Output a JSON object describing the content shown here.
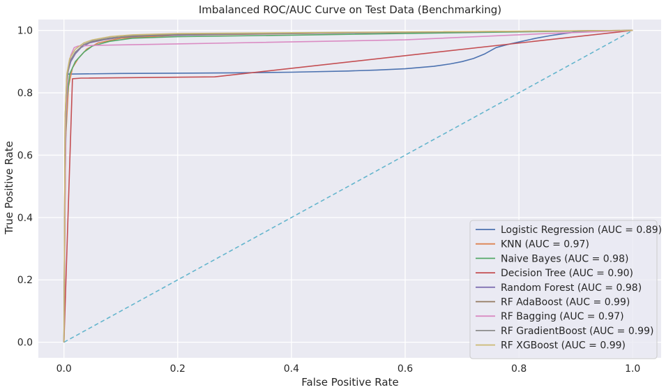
{
  "chart_data": {
    "type": "line",
    "title": "Imbalanced ROC/AUC Curve on Test Data (Benchmarking)",
    "xlabel": "False Positive Rate",
    "ylabel": "True Positive Rate",
    "xlim": [
      -0.045,
      1.05
    ],
    "ylim": [
      -0.05,
      1.035
    ],
    "xticks": [
      0.0,
      0.2,
      0.4,
      0.6,
      0.8,
      1.0
    ],
    "yticks": [
      0.0,
      0.2,
      0.4,
      0.6,
      0.8,
      1.0
    ],
    "xtick_labels": [
      "0.0",
      "0.2",
      "0.4",
      "0.6",
      "0.8",
      "1.0"
    ],
    "ytick_labels": [
      "0.0",
      "0.2",
      "0.4",
      "0.6",
      "0.8",
      "1.0"
    ],
    "grid": true,
    "background": "#eaeaf2",
    "legend_position": "lower-right",
    "reference_line": {
      "x": [
        0,
        1
      ],
      "y": [
        0,
        1
      ],
      "style": "dashed",
      "color": "#64b5cd"
    },
    "series": [
      {
        "name": "Logistic Regression (AUC = 0.89)",
        "color": "#4c72b0",
        "x": [
          0,
          0.002,
          0.005,
          0.01,
          0.1,
          0.2,
          0.3,
          0.4,
          0.5,
          0.55,
          0.6,
          0.65,
          0.68,
          0.7,
          0.72,
          0.74,
          0.76,
          0.78,
          0.8,
          0.83,
          0.86,
          0.88,
          0.9,
          0.95,
          1.0
        ],
        "y": [
          0,
          0.5,
          0.86,
          0.86,
          0.862,
          0.863,
          0.864,
          0.866,
          0.87,
          0.873,
          0.877,
          0.885,
          0.893,
          0.9,
          0.91,
          0.925,
          0.945,
          0.955,
          0.963,
          0.975,
          0.985,
          0.99,
          0.995,
          0.998,
          1.0
        ]
      },
      {
        "name": "KNN (AUC = 0.97)",
        "color": "#dd8452",
        "x": [
          0,
          0.003,
          0.008,
          0.015,
          0.025,
          0.04,
          0.06,
          0.1,
          0.2,
          0.5,
          0.8,
          1.0
        ],
        "y": [
          0,
          0.65,
          0.82,
          0.88,
          0.91,
          0.94,
          0.96,
          0.975,
          0.985,
          0.992,
          0.997,
          1.0
        ]
      },
      {
        "name": "Naive Bayes (AUC = 0.98)",
        "color": "#55a868",
        "x": [
          0,
          0.002,
          0.005,
          0.01,
          0.02,
          0.035,
          0.05,
          0.08,
          0.12,
          0.2,
          0.4,
          0.7,
          1.0
        ],
        "y": [
          0,
          0.6,
          0.78,
          0.86,
          0.9,
          0.93,
          0.95,
          0.965,
          0.975,
          0.98,
          0.985,
          0.993,
          1.0
        ]
      },
      {
        "name": "Decision Tree (AUC = 0.90)",
        "color": "#c44e52",
        "x": [
          0,
          0.015,
          0.03,
          0.265,
          1.0
        ],
        "y": [
          0,
          0.845,
          0.847,
          0.851,
          1.0
        ]
      },
      {
        "name": "Random Forest (AUC = 0.98)",
        "color": "#8172b3",
        "x": [
          0,
          0.002,
          0.006,
          0.012,
          0.02,
          0.03,
          0.045,
          0.07,
          0.1,
          0.15,
          0.3,
          0.6,
          1.0
        ],
        "y": [
          0,
          0.7,
          0.86,
          0.9,
          0.925,
          0.945,
          0.96,
          0.97,
          0.978,
          0.983,
          0.988,
          0.994,
          1.0
        ]
      },
      {
        "name": "RF AdaBoost (AUC = 0.99)",
        "color": "#937860",
        "x": [
          0,
          0.002,
          0.005,
          0.01,
          0.02,
          0.035,
          0.05,
          0.08,
          0.12,
          0.2,
          0.5,
          1.0
        ],
        "y": [
          0,
          0.72,
          0.85,
          0.9,
          0.93,
          0.955,
          0.965,
          0.975,
          0.982,
          0.987,
          0.993,
          1.0
        ]
      },
      {
        "name": "RF Bagging (AUC = 0.97)",
        "color": "#da8bc3",
        "x": [
          0,
          0.003,
          0.007,
          0.012,
          0.018,
          0.025,
          0.05,
          0.3,
          0.6,
          0.85,
          1.0
        ],
        "y": [
          0,
          0.7,
          0.87,
          0.92,
          0.945,
          0.95,
          0.952,
          0.96,
          0.97,
          0.99,
          1.0
        ]
      },
      {
        "name": "RF GradientBoost (AUC = 0.99)",
        "color": "#8c8c8c",
        "x": [
          0,
          0.002,
          0.005,
          0.01,
          0.02,
          0.035,
          0.05,
          0.08,
          0.12,
          0.2,
          0.5,
          1.0
        ],
        "y": [
          0,
          0.7,
          0.84,
          0.9,
          0.93,
          0.955,
          0.966,
          0.976,
          0.983,
          0.988,
          0.993,
          1.0
        ]
      },
      {
        "name": "RF XGBoost (AUC = 0.99)",
        "color": "#ccb974",
        "x": [
          0,
          0.002,
          0.005,
          0.01,
          0.02,
          0.035,
          0.05,
          0.08,
          0.12,
          0.2,
          0.5,
          1.0
        ],
        "y": [
          0,
          0.72,
          0.86,
          0.91,
          0.94,
          0.96,
          0.97,
          0.98,
          0.986,
          0.99,
          0.994,
          1.0
        ]
      }
    ]
  }
}
